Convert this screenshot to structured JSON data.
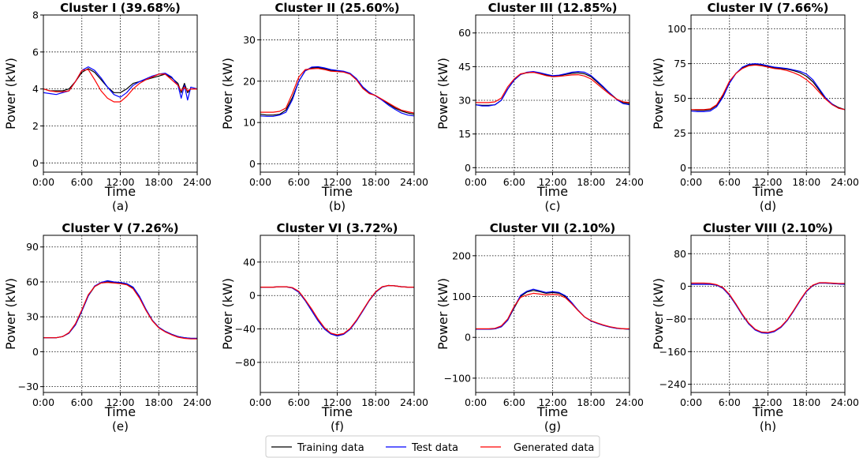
{
  "colors": {
    "training": "#000000",
    "test": "#0000ff",
    "generated": "#ff0000"
  },
  "legend": {
    "items": [
      {
        "label": "Training data",
        "color": "#000000"
      },
      {
        "label": "Test data",
        "color": "#0000ff"
      },
      {
        "label": "Generated data",
        "color": "#ff0000"
      }
    ],
    "placement": "bottom-center"
  },
  "chart_data": [
    {
      "type": "line",
      "title": "Cluster I (39.68%)",
      "panel_label": "(a)",
      "xlabel": "Time",
      "ylabel": "Power (kW)",
      "xticks": [
        "0:00",
        "6:00",
        "12:00",
        "18:00",
        "24:00"
      ],
      "xlim": [
        0,
        24
      ],
      "ylim": [
        -0.5,
        8
      ],
      "yticks": [
        0,
        2,
        4,
        6,
        8
      ],
      "grid": true,
      "x": [
        0,
        1,
        2,
        3,
        4,
        5,
        6,
        7,
        8,
        9,
        10,
        11,
        12,
        13,
        14,
        15,
        16,
        17,
        18,
        19,
        20,
        21,
        21.5,
        22,
        22.5,
        23,
        24
      ],
      "series": [
        {
          "name": "Training data",
          "values": [
            4.0,
            3.9,
            3.9,
            3.9,
            4.0,
            4.4,
            4.9,
            5.1,
            4.9,
            4.5,
            4.1,
            3.8,
            3.8,
            4.0,
            4.3,
            4.4,
            4.5,
            4.6,
            4.7,
            4.8,
            4.6,
            4.3,
            3.8,
            4.3,
            3.8,
            4.0,
            4.0
          ]
        },
        {
          "name": "Test data",
          "values": [
            3.8,
            3.75,
            3.7,
            3.8,
            3.9,
            4.4,
            5.0,
            5.2,
            5.0,
            4.6,
            4.1,
            3.7,
            3.55,
            3.8,
            4.2,
            4.4,
            4.55,
            4.7,
            4.8,
            4.85,
            4.65,
            4.2,
            3.5,
            4.2,
            3.4,
            4.1,
            4.0
          ]
        },
        {
          "name": "Generated data",
          "values": [
            4.0,
            3.9,
            3.85,
            3.85,
            3.9,
            4.4,
            5.0,
            5.05,
            4.5,
            3.9,
            3.5,
            3.3,
            3.3,
            3.6,
            4.0,
            4.3,
            4.5,
            4.65,
            4.8,
            4.8,
            4.5,
            4.2,
            3.9,
            4.1,
            3.9,
            4.0,
            4.0
          ]
        }
      ]
    },
    {
      "type": "line",
      "title": "Cluster II (25.60%)",
      "panel_label": "(b)",
      "xlabel": "Time",
      "ylabel": "Power (kW)",
      "xticks": [
        "0:00",
        "6:00",
        "12:00",
        "18:00",
        "24:00"
      ],
      "xlim": [
        0,
        24
      ],
      "ylim": [
        -2,
        36
      ],
      "yticks": [
        0,
        10,
        20,
        30
      ],
      "grid": true,
      "x": [
        0,
        1,
        2,
        3,
        4,
        5,
        6,
        7,
        8,
        9,
        10,
        11,
        12,
        13,
        14,
        15,
        16,
        17,
        18,
        19,
        20,
        21,
        22,
        23,
        24
      ],
      "series": [
        {
          "name": "Training data",
          "values": [
            12.0,
            11.8,
            11.8,
            12.0,
            13.0,
            16.0,
            20.0,
            22.5,
            23.2,
            23.3,
            23.0,
            22.6,
            22.5,
            22.3,
            21.8,
            20.5,
            18.5,
            17.2,
            16.5,
            15.5,
            14.5,
            13.5,
            12.8,
            12.3,
            12.0
          ]
        },
        {
          "name": "Test data",
          "values": [
            11.6,
            11.5,
            11.5,
            11.8,
            12.5,
            15.5,
            20.0,
            22.5,
            23.4,
            23.5,
            23.2,
            22.8,
            22.6,
            22.4,
            21.9,
            20.6,
            18.6,
            17.3,
            16.4,
            15.4,
            14.2,
            13.2,
            12.3,
            11.8,
            11.6
          ]
        },
        {
          "name": "Generated data",
          "values": [
            12.5,
            12.5,
            12.5,
            12.7,
            13.5,
            17.0,
            21.0,
            22.8,
            23.0,
            23.1,
            22.8,
            22.4,
            22.3,
            22.2,
            21.7,
            20.3,
            18.2,
            17.0,
            16.5,
            15.6,
            14.7,
            13.8,
            13.0,
            12.6,
            12.3
          ]
        }
      ]
    },
    {
      "type": "line",
      "title": "Cluster III (12.85%)",
      "panel_label": "(c)",
      "xlabel": "Time",
      "ylabel": "Power (kW)",
      "xticks": [
        "0:00",
        "6:00",
        "12:00",
        "18:00",
        "24:00"
      ],
      "xlim": [
        0,
        24
      ],
      "ylim": [
        -2,
        68
      ],
      "yticks": [
        0,
        15,
        30,
        45,
        60
      ],
      "grid": true,
      "x": [
        0,
        1,
        2,
        3,
        4,
        5,
        6,
        7,
        8,
        9,
        10,
        11,
        12,
        13,
        14,
        15,
        16,
        17,
        18,
        19,
        20,
        21,
        22,
        23,
        24
      ],
      "series": [
        {
          "name": "Training data",
          "values": [
            28.0,
            27.8,
            27.8,
            28.0,
            30.0,
            35.0,
            39.0,
            41.5,
            42.3,
            42.5,
            42.0,
            41.3,
            40.8,
            41.0,
            41.5,
            42.0,
            42.2,
            41.8,
            40.5,
            38.0,
            35.5,
            33.0,
            30.5,
            29.0,
            28.5
          ]
        },
        {
          "name": "Test data",
          "values": [
            28.0,
            27.5,
            27.5,
            28.0,
            30.0,
            35.0,
            39.0,
            41.5,
            42.5,
            42.8,
            42.3,
            41.6,
            41.0,
            41.2,
            41.8,
            42.5,
            42.8,
            42.5,
            41.0,
            38.5,
            35.8,
            33.0,
            30.3,
            28.5,
            28.0
          ]
        },
        {
          "name": "Generated data",
          "values": [
            29.0,
            29.0,
            29.0,
            29.3,
            31.0,
            36.0,
            39.5,
            41.8,
            42.3,
            42.5,
            41.8,
            41.0,
            40.5,
            40.7,
            41.0,
            41.3,
            41.4,
            40.8,
            39.5,
            37.2,
            34.8,
            32.5,
            30.5,
            29.3,
            29.0
          ]
        }
      ]
    },
    {
      "type": "line",
      "title": "Cluster IV (7.66%)",
      "panel_label": "(d)",
      "xlabel": "Time",
      "ylabel": "Power (kW)",
      "xticks": [
        "0:00",
        "6:00",
        "12:00",
        "18:00",
        "24:00"
      ],
      "xlim": [
        0,
        24
      ],
      "ylim": [
        -3,
        110
      ],
      "yticks": [
        0,
        25,
        50,
        75,
        100
      ],
      "grid": true,
      "x": [
        0,
        1,
        2,
        3,
        4,
        5,
        6,
        7,
        8,
        9,
        10,
        11,
        12,
        13,
        14,
        15,
        16,
        17,
        18,
        19,
        20,
        21,
        22,
        23,
        24
      ],
      "series": [
        {
          "name": "Training data",
          "values": [
            42,
            41.5,
            41.5,
            42,
            45,
            52,
            62,
            68,
            72,
            74,
            74.5,
            74,
            73,
            72,
            71.5,
            71,
            70,
            68.5,
            66,
            62,
            56,
            50,
            46,
            43.5,
            42
          ]
        },
        {
          "name": "Test data",
          "values": [
            41,
            40.5,
            40.5,
            41,
            44,
            51,
            61,
            68,
            72.5,
            74.5,
            75,
            74.5,
            73.5,
            72.5,
            72,
            71.5,
            70.5,
            69.5,
            67.5,
            63.5,
            57,
            50.5,
            46,
            43,
            42
          ]
        },
        {
          "name": "Generated data",
          "values": [
            42,
            42,
            42,
            42.5,
            45.5,
            53,
            62.5,
            68,
            71.5,
            73.5,
            74,
            73.5,
            72.5,
            71.5,
            71,
            70,
            68.5,
            66.5,
            63.5,
            59.5,
            54.5,
            49.5,
            45.5,
            43,
            42
          ]
        }
      ]
    },
    {
      "type": "line",
      "title": "Cluster V (7.26%)",
      "panel_label": "(e)",
      "xlabel": "Time",
      "ylabel": "Power (kW)",
      "xticks": [
        "0:00",
        "6:00",
        "12:00",
        "18:00",
        "24:00"
      ],
      "xlim": [
        0,
        24
      ],
      "ylim": [
        -35,
        100
      ],
      "yticks": [
        -30,
        0,
        30,
        60,
        90
      ],
      "grid": true,
      "x": [
        0,
        1,
        2,
        3,
        4,
        5,
        6,
        7,
        8,
        9,
        10,
        11,
        12,
        13,
        14,
        15,
        16,
        17,
        18,
        19,
        20,
        21,
        22,
        23,
        24
      ],
      "series": [
        {
          "name": "Training data",
          "values": [
            12,
            12,
            12,
            13,
            16,
            23,
            35,
            48,
            56,
            59,
            60,
            59.5,
            59,
            58,
            55,
            47,
            36,
            27,
            21,
            17.5,
            15,
            13,
            12,
            11.5,
            11.5
          ]
        },
        {
          "name": "Test data",
          "values": [
            12,
            12,
            12,
            13,
            16,
            23,
            35,
            48,
            56.5,
            59.5,
            61,
            60,
            59.5,
            58.5,
            55.5,
            47.5,
            36.5,
            27,
            21,
            17.5,
            15,
            13,
            12,
            11.5,
            11.5
          ]
        },
        {
          "name": "Generated data",
          "values": [
            12,
            12,
            12,
            13,
            16.5,
            24,
            36,
            49,
            56,
            59,
            59.5,
            59,
            58.5,
            57.5,
            54,
            46,
            35.5,
            26.5,
            20.5,
            17,
            14.5,
            12.5,
            11.5,
            11,
            11
          ]
        }
      ]
    },
    {
      "type": "line",
      "title": "Cluster VI (3.72%)",
      "panel_label": "(f)",
      "xlabel": "Time",
      "ylabel": "Power (kW)",
      "xticks": [
        "0:00",
        "6:00",
        "12:00",
        "18:00",
        "24:00"
      ],
      "xlim": [
        0,
        24
      ],
      "ylim": [
        -116,
        72
      ],
      "yticks": [
        -80,
        -40,
        0,
        40
      ],
      "grid": true,
      "x": [
        0,
        1,
        2,
        3,
        4,
        5,
        6,
        7,
        8,
        9,
        10,
        11,
        12,
        13,
        14,
        15,
        16,
        17,
        18,
        19,
        20,
        21,
        22,
        23,
        24
      ],
      "series": [
        {
          "name": "Training data",
          "values": [
            10,
            10,
            10,
            10.5,
            10.5,
            9,
            4,
            -6,
            -18,
            -30,
            -40,
            -46,
            -48,
            -46,
            -40,
            -30,
            -18,
            -6,
            4,
            10,
            12,
            11.5,
            10.5,
            10,
            10
          ]
        },
        {
          "name": "Test data",
          "values": [
            10,
            10,
            10,
            10.5,
            10.5,
            9,
            4,
            -6,
            -18,
            -30,
            -40,
            -46,
            -48.5,
            -46.5,
            -40.5,
            -30.5,
            -18.5,
            -6,
            4,
            10,
            12,
            11.5,
            10.5,
            10,
            10
          ]
        },
        {
          "name": "Generated data",
          "values": [
            10,
            10,
            10,
            10.5,
            10.5,
            9.5,
            5,
            -5,
            -16,
            -28,
            -38.5,
            -45,
            -47,
            -45.5,
            -39.5,
            -29.5,
            -17.5,
            -5.5,
            4.5,
            10.5,
            12,
            11.5,
            10.5,
            10,
            10
          ]
        }
      ]
    },
    {
      "type": "line",
      "title": "Cluster VII (2.10%)",
      "panel_label": "(g)",
      "xlabel": "Time",
      "ylabel": "Power (kW)",
      "xticks": [
        "0:00",
        "6:00",
        "12:00",
        "18:00",
        "24:00"
      ],
      "xlim": [
        0,
        24
      ],
      "ylim": [
        -135,
        250
      ],
      "yticks": [
        -100,
        0,
        100,
        200
      ],
      "grid": true,
      "x": [
        0,
        1,
        2,
        3,
        4,
        5,
        6,
        7,
        8,
        9,
        10,
        11,
        12,
        13,
        14,
        15,
        16,
        17,
        18,
        19,
        20,
        21,
        22,
        23,
        24
      ],
      "series": [
        {
          "name": "Training data",
          "values": [
            20,
            20,
            20,
            21,
            26,
            42,
            72,
            100,
            111,
            115,
            112,
            108,
            110,
            108,
            100,
            84,
            66,
            50,
            40,
            34,
            29,
            25,
            22,
            21,
            20
          ]
        },
        {
          "name": "Test data",
          "values": [
            20,
            20,
            20,
            21,
            26,
            42,
            74,
            103,
            113,
            118,
            114,
            110,
            112,
            110,
            102,
            85,
            66,
            50,
            40,
            34,
            29,
            25,
            22,
            21,
            20
          ]
        },
        {
          "name": "Generated data",
          "values": [
            21,
            21,
            21,
            22,
            28,
            45,
            76,
            98,
            104,
            108,
            106,
            104,
            105,
            104,
            97,
            82,
            65,
            50,
            41,
            35,
            30,
            26,
            23,
            21,
            21
          ]
        }
      ]
    },
    {
      "type": "line",
      "title": "Cluster VIII (2.10%)",
      "panel_label": "(h)",
      "xlabel": "Time",
      "ylabel": "Power (kW)",
      "xticks": [
        "0:00",
        "6:00",
        "12:00",
        "18:00",
        "24:00"
      ],
      "xlim": [
        0,
        24
      ],
      "ylim": [
        -260,
        125
      ],
      "yticks": [
        -240,
        -160,
        -80,
        0,
        80
      ],
      "grid": true,
      "x": [
        0,
        1,
        2,
        3,
        4,
        5,
        6,
        7,
        8,
        9,
        10,
        11,
        12,
        13,
        14,
        15,
        16,
        17,
        18,
        19,
        20,
        21,
        22,
        23,
        24
      ],
      "series": [
        {
          "name": "Training data",
          "values": [
            5,
            5,
            5,
            5,
            3,
            -5,
            -22,
            -45,
            -70,
            -92,
            -106,
            -113,
            -114,
            -110,
            -100,
            -83,
            -60,
            -35,
            -12,
            2,
            8,
            8,
            7,
            6,
            5
          ]
        },
        {
          "name": "Test data",
          "values": [
            5,
            5,
            5,
            5,
            3,
            -5,
            -22,
            -45,
            -70,
            -92,
            -107,
            -114,
            -115,
            -111,
            -101,
            -84,
            -61,
            -36,
            -13,
            2,
            8,
            8,
            7,
            6,
            5
          ]
        },
        {
          "name": "Generated data",
          "values": [
            8,
            8,
            8,
            7,
            4,
            -3,
            -20,
            -43,
            -68,
            -90,
            -105,
            -112,
            -113,
            -109,
            -99,
            -82,
            -59,
            -34,
            -11,
            3,
            9,
            9,
            8,
            7,
            7
          ]
        }
      ]
    }
  ]
}
